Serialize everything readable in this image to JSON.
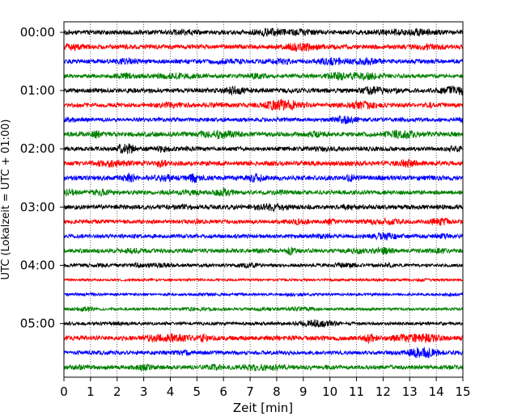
{
  "chart_data": {
    "type": "line",
    "title": "",
    "xlabel": "Zeit  [min]",
    "ylabel": "UTC (Lokalzeit = UTC + 01:00)",
    "xlim": [
      0,
      15
    ],
    "xticks": [
      "0",
      "1",
      "2",
      "3",
      "4",
      "5",
      "6",
      "7",
      "8",
      "9",
      "10",
      "11",
      "12",
      "13",
      "14",
      "15"
    ],
    "yticks": [
      {
        "label": "00:00",
        "row": 0
      },
      {
        "label": "01:00",
        "row": 4
      },
      {
        "label": "02:00",
        "row": 8
      },
      {
        "label": "03:00",
        "row": 12
      },
      {
        "label": "04:00",
        "row": 16
      },
      {
        "label": "05:00",
        "row": 20
      }
    ],
    "grid": {
      "x": true,
      "y": false
    },
    "trace_colors": [
      "#000000",
      "#ff0000",
      "#0000ff",
      "#008000"
    ],
    "row_count": 24,
    "minutes_per_row": 15,
    "rows": [
      {
        "start": "00:00",
        "level": 0.55
      },
      {
        "start": "00:15",
        "level": 0.55
      },
      {
        "start": "00:30",
        "level": 0.5
      },
      {
        "start": "00:45",
        "level": 0.45
      },
      {
        "start": "01:00",
        "level": 0.55
      },
      {
        "start": "01:15",
        "level": 0.5
      },
      {
        "start": "01:30",
        "level": 0.45
      },
      {
        "start": "01:45",
        "level": 0.6
      },
      {
        "start": "02:00",
        "level": 0.5
      },
      {
        "start": "02:15",
        "level": 0.6
      },
      {
        "start": "02:30",
        "level": 0.6
      },
      {
        "start": "02:45",
        "level": 0.5
      },
      {
        "start": "03:00",
        "level": 0.55
      },
      {
        "start": "03:15",
        "level": 0.45
      },
      {
        "start": "03:30",
        "level": 0.45
      },
      {
        "start": "03:45",
        "level": 0.5
      },
      {
        "start": "04:00",
        "level": 0.3
      },
      {
        "start": "04:15",
        "level": 0.15
      },
      {
        "start": "04:30",
        "level": 0.15
      },
      {
        "start": "04:45",
        "level": 0.2
      },
      {
        "start": "05:00",
        "level": 0.3
      },
      {
        "start": "05:15",
        "level": 0.6
      },
      {
        "start": "05:30",
        "level": 0.45
      },
      {
        "start": "05:45",
        "level": 0.5
      }
    ]
  }
}
